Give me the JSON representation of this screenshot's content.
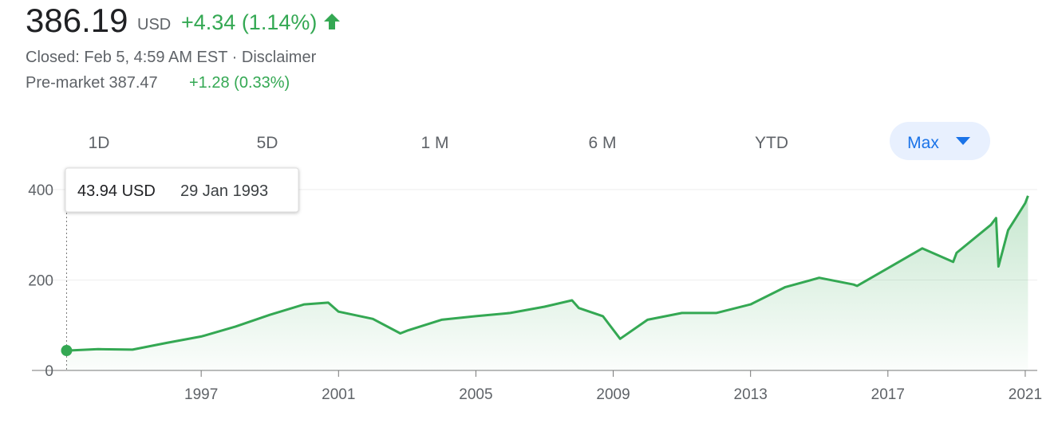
{
  "header": {
    "price": "386.19",
    "currency": "USD",
    "change": "+4.34 (1.14%)",
    "closed": "Closed: Feb 5, 4:59 AM EST",
    "disclaimer": "Disclaimer",
    "premarket_label": "Pre-market 387.47",
    "premarket_change": "+1.28 (0.33%)"
  },
  "tabs": [
    "1D",
    "5D",
    "1 M",
    "6 M",
    "YTD",
    "Max"
  ],
  "tooltip": {
    "value": "43.94 USD",
    "date": "29 Jan 1993"
  },
  "chart_data": {
    "type": "line",
    "x": [
      1993.08,
      1994,
      1995,
      1996,
      1997,
      1998,
      1999,
      2000,
      2000.7,
      2001,
      2002,
      2002.8,
      2003,
      2004,
      2005,
      2006,
      2007,
      2007.8,
      2008,
      2008.7,
      2009.2,
      2010,
      2011,
      2012,
      2013,
      2014,
      2015,
      2016,
      2016.1,
      2017,
      2018,
      2018.9,
      2019,
      2020,
      2020.15,
      2020.22,
      2020.5,
      2021,
      2021.08
    ],
    "series": [
      {
        "color": "#34a853",
        "values": [
          43.94,
          47,
          46,
          61,
          75,
          97,
          123,
          146,
          150,
          130,
          114,
          82,
          88,
          112,
          120,
          127,
          141,
          155,
          138,
          120,
          70,
          112,
          127,
          127,
          146,
          184,
          205,
          190,
          187,
          226,
          270,
          240,
          260,
          322,
          337,
          230,
          310,
          370,
          386.19
        ]
      }
    ],
    "xlim": [
      1992.07,
      2021.35
    ],
    "xticks": [
      1997,
      2001,
      2005,
      2009,
      2013,
      2017,
      2021
    ],
    "ylim": [
      0,
      450
    ],
    "yticks": [
      0,
      200,
      400
    ],
    "grid": true
  }
}
